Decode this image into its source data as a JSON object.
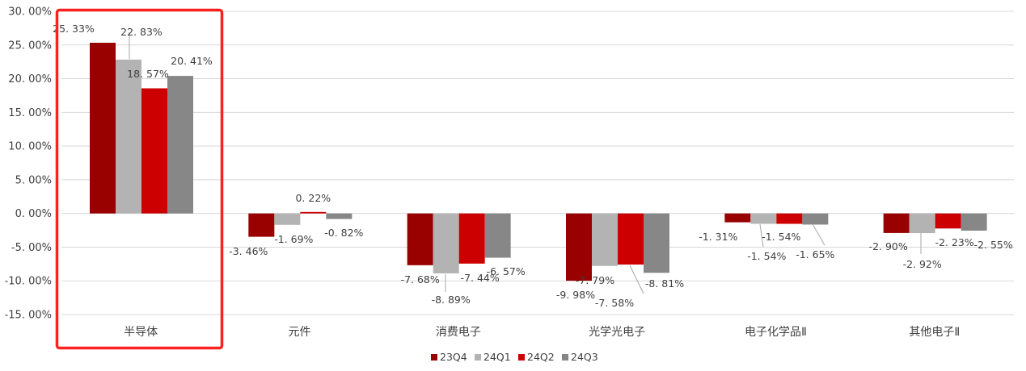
{
  "chart_data": {
    "type": "bar",
    "categories": [
      "半导体",
      "元件",
      "消费电子",
      "光学光电子",
      "电子化学品Ⅱ",
      "其他电子Ⅱ"
    ],
    "series": [
      {
        "name": "23Q4",
        "color": "#990000",
        "values": [
          25.33,
          -3.46,
          -7.68,
          -9.98,
          -1.31,
          -2.9
        ]
      },
      {
        "name": "24Q1",
        "color": "#b3b3b3",
        "values": [
          22.83,
          -1.69,
          -8.89,
          -7.79,
          -1.54,
          -2.92
        ]
      },
      {
        "name": "24Q2",
        "color": "#cc0000",
        "values": [
          18.57,
          0.22,
          -7.44,
          -7.58,
          -1.54,
          -2.23
        ]
      },
      {
        "name": "24Q3",
        "color": "#878787",
        "values": [
          20.41,
          -0.82,
          -6.57,
          -8.81,
          -1.65,
          -2.55
        ]
      }
    ],
    "data_labels": [
      [
        "25. 33%",
        "22. 83%",
        "18. 57%",
        "20. 41%"
      ],
      [
        "-3. 46%",
        "-1. 69%",
        "0. 22%",
        "-0. 82%"
      ],
      [
        "-7. 68%",
        "-8. 89%",
        "-7. 44%",
        "-6. 57%"
      ],
      [
        "-9. 98%",
        "-7. 79%",
        "-7. 58%",
        "-8. 81%"
      ],
      [
        "-1. 31%",
        "-1. 54%",
        "-1. 54%",
        "-1. 65%"
      ],
      [
        "-2. 90%",
        "-2. 92%",
        "-2. 23%",
        "-2. 55%"
      ]
    ],
    "y_ticks": [
      "30. 00%",
      "25. 00%",
      "20. 00%",
      "15. 00%",
      "10. 00%",
      "5. 00%",
      "0. 00%",
      "-5. 00%",
      "-10. 00%",
      "-15. 00%"
    ],
    "y_tick_values": [
      30,
      25,
      20,
      15,
      10,
      5,
      0,
      -5,
      -10,
      -15
    ],
    "ylim": [
      -15,
      30
    ],
    "grid": true,
    "legend_position": "bottom",
    "title": "",
    "xlabel": "",
    "ylabel": "",
    "highlight": {
      "category": "半导体",
      "color": "#ff2020"
    }
  }
}
